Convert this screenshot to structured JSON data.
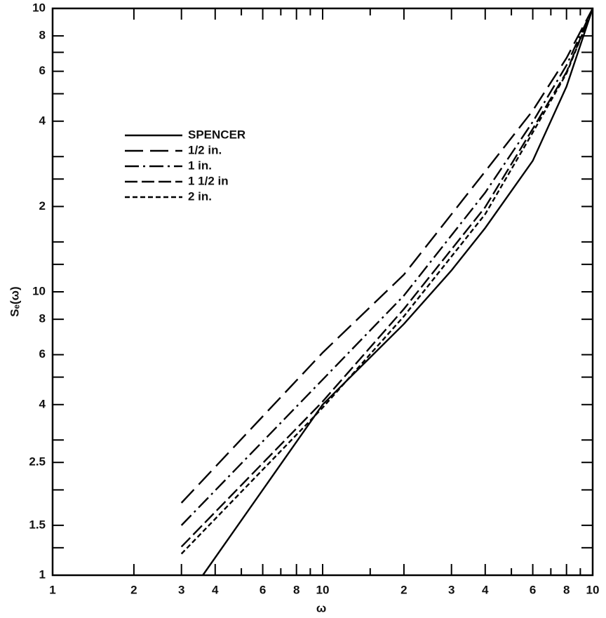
{
  "chart_data": {
    "type": "line",
    "xlabel": "ω",
    "ylabel": "Sₑ(ω)",
    "xscale": "log",
    "yscale": "log",
    "xlim": [
      1,
      100
    ],
    "ylim": [
      1,
      100
    ],
    "xticks": [
      1,
      2,
      3,
      4,
      6,
      8,
      10,
      {
        "value": 20,
        "label": "2"
      },
      {
        "value": 30,
        "label": "3"
      },
      {
        "value": 40,
        "label": "4"
      },
      {
        "value": 60,
        "label": "6"
      },
      {
        "value": 80,
        "label": "8"
      },
      {
        "value": 100,
        "label": "10"
      }
    ],
    "yticks": [
      1,
      1.5,
      2.5,
      4,
      6,
      8,
      10,
      {
        "value": 20,
        "label": "2"
      },
      {
        "value": 40,
        "label": "4"
      },
      {
        "value": 60,
        "label": "6"
      },
      {
        "value": 80,
        "label": "8"
      },
      {
        "value": 100,
        "label": "10"
      }
    ],
    "xminorticks": [
      5,
      7,
      9,
      15,
      50,
      70,
      90
    ],
    "yminorticks": [
      1.25,
      2,
      3,
      5,
      12.5,
      15,
      25,
      30,
      50,
      70
    ],
    "legend": "upper left",
    "series": [
      {
        "name": "SPENCER",
        "color": "#000000",
        "linestyle": "solid",
        "x": [
          3.6,
          10,
          20,
          30,
          40,
          60,
          80,
          100
        ],
        "values": [
          1,
          4.0,
          7.7,
          11.9,
          16.8,
          29,
          53,
          100
        ]
      },
      {
        "name": "1/2 in.",
        "color": "#000000",
        "linestyle": "longdash",
        "x": [
          3,
          10,
          20,
          40,
          60,
          80,
          100
        ],
        "values": [
          1.8,
          6.1,
          11.5,
          26.6,
          43.6,
          66.8,
          100
        ]
      },
      {
        "name": "1 in.",
        "color": "#000000",
        "linestyle": "dashdot",
        "x": [
          3,
          10,
          20,
          40,
          60,
          80,
          100
        ],
        "values": [
          1.5,
          4.9,
          9.7,
          22.4,
          39.8,
          63,
          100
        ]
      },
      {
        "name": "1 1/2 in",
        "color": "#000000",
        "linestyle": "dashed",
        "x": [
          3,
          10,
          20,
          40,
          60,
          80,
          100
        ],
        "values": [
          1.26,
          4.1,
          8.7,
          19.9,
          37.6,
          59.6,
          100
        ]
      },
      {
        "name": "2 in.",
        "color": "#000000",
        "linestyle": "shortdash",
        "x": [
          3,
          10,
          20,
          40,
          60,
          80,
          100
        ],
        "values": [
          1.19,
          3.9,
          8.2,
          18.8,
          36.5,
          59,
          100
        ]
      }
    ]
  }
}
